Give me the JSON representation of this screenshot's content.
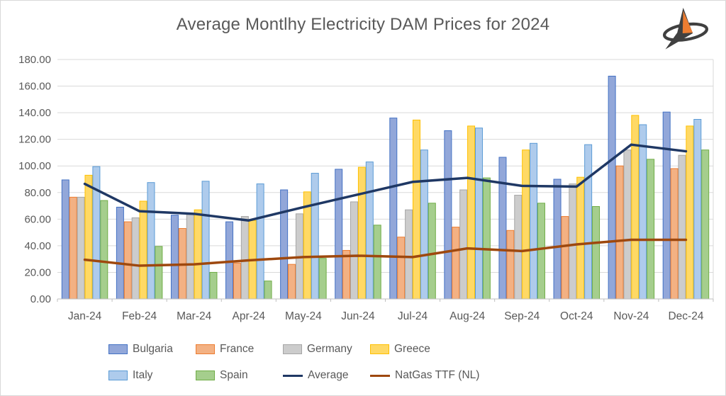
{
  "header": {
    "title": "Average Montlhy Electricity DAM Prices for 2024",
    "logo_name": "arrow-compass-logo",
    "logo_colors": {
      "dark": "#404040",
      "orange": "#ED7D31"
    }
  },
  "axis": {
    "y_min": 0,
    "y_max": 180,
    "y_step": 20,
    "y_decimals": 2,
    "grid_color": "#D9D9D9",
    "axis_color": "#BFBFBF",
    "label_color": "#595959"
  },
  "chart_data": {
    "type": "bar",
    "title": "Average Montlhy Electricity DAM Prices for 2024",
    "categories": [
      "Jan-24",
      "Feb-24",
      "Mar-24",
      "Apr-24",
      "May-24",
      "Jun-24",
      "Jul-24",
      "Aug-24",
      "Sep-24",
      "Oct-24",
      "Nov-24",
      "Dec-24"
    ],
    "ylim": [
      0,
      180
    ],
    "ytick_step": 20,
    "grid": true,
    "legend_position": "bottom",
    "series": [
      {
        "name": "Bulgaria",
        "type": "bar",
        "fill": "#92A7D9",
        "border": "#4472C4",
        "values": [
          89.5,
          69,
          63,
          58,
          82,
          97.5,
          136,
          126.5,
          106.5,
          90,
          167.5,
          140.5
        ]
      },
      {
        "name": "France",
        "type": "bar",
        "fill": "#F3B183",
        "border": "#ED7D31",
        "values": [
          76.5,
          58,
          53,
          27,
          26,
          36.5,
          46.5,
          54,
          51.5,
          62,
          100,
          98
        ]
      },
      {
        "name": "Germany",
        "type": "bar",
        "fill": "#CCCCCC",
        "border": "#A6A6A6",
        "values": [
          76.5,
          61,
          63.5,
          62,
          64,
          73,
          67,
          82,
          78,
          86.5,
          112,
          108
        ]
      },
      {
        "name": "Greece",
        "type": "bar",
        "fill": "#FFD965",
        "border": "#FFC000",
        "values": [
          93,
          73.5,
          67,
          59,
          80.5,
          99,
          134.5,
          130,
          112,
          91.5,
          138,
          130
        ]
      },
      {
        "name": "Italy",
        "type": "bar",
        "fill": "#AECBEC",
        "border": "#5B9BD5",
        "values": [
          99.5,
          87.5,
          88.5,
          86.5,
          94.5,
          103,
          112,
          128.5,
          117,
          116,
          131,
          135
        ]
      },
      {
        "name": "Spain",
        "type": "bar",
        "fill": "#A5CE8D",
        "border": "#70AD47",
        "values": [
          74,
          39.5,
          20,
          13.5,
          30.5,
          55.5,
          72,
          91,
          72,
          69.5,
          105,
          112
        ]
      },
      {
        "name": "Average",
        "type": "line",
        "color": "#1F3864",
        "values": [
          86.5,
          66,
          64,
          59,
          69,
          78.5,
          88,
          91,
          85,
          84.5,
          116,
          111
        ]
      },
      {
        "name": "NatGas TTF (NL)",
        "type": "line",
        "color": "#9E480E",
        "values": [
          29.5,
          25,
          26,
          29,
          31.5,
          32.5,
          31.5,
          38,
          36,
          41,
          44.5,
          44.5
        ]
      }
    ]
  }
}
